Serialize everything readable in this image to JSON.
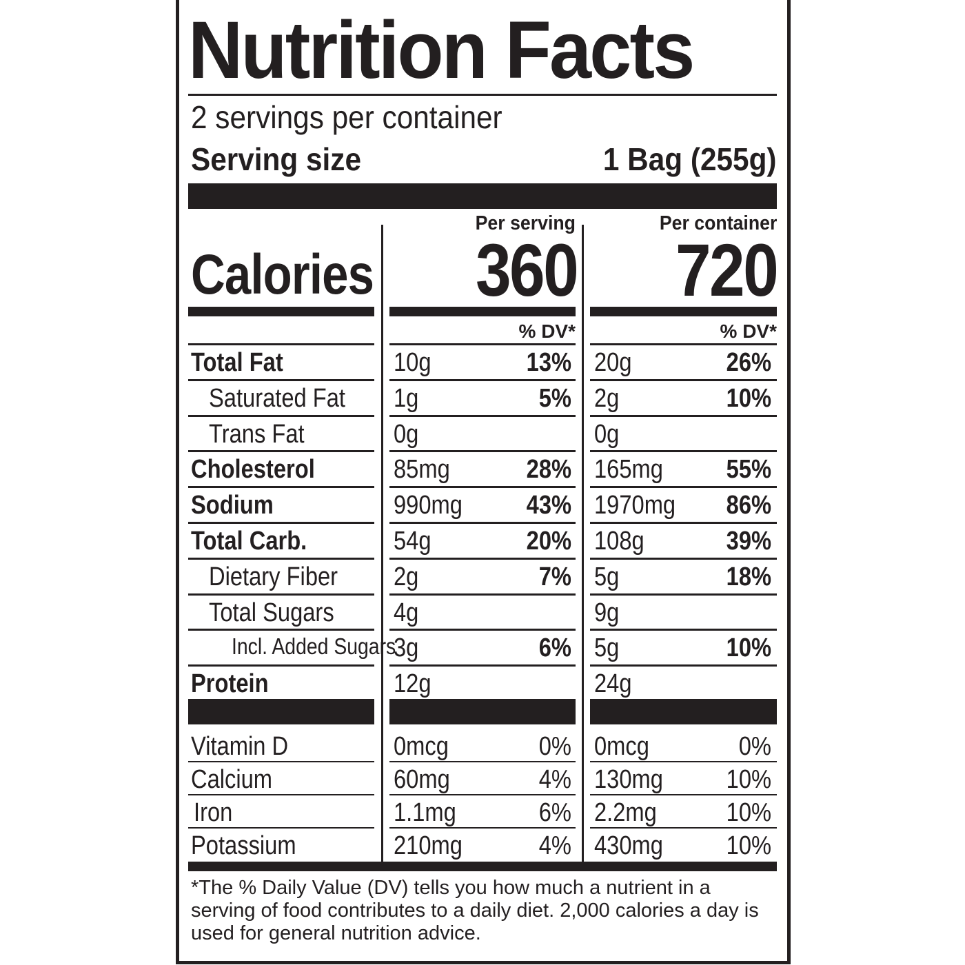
{
  "title": "Nutrition Facts",
  "servings_per_container": "2 servings per container",
  "serving_size": {
    "label": "Serving size",
    "value": "1 Bag (255g)"
  },
  "columns": {
    "per_serving": "Per serving",
    "per_container": "Per container"
  },
  "calories": {
    "label": "Calories",
    "per_serving": "360",
    "per_container": "720"
  },
  "dv_header": "% DV*",
  "nutrients": [
    {
      "name": "Total Fat",
      "bold": true,
      "indent": 0,
      "s_amt": "10g",
      "s_dv": "13%",
      "c_amt": "20g",
      "c_dv": "26%"
    },
    {
      "name": "Saturated Fat",
      "bold": false,
      "indent": 1,
      "s_amt": "1g",
      "s_dv": "5%",
      "c_amt": "2g",
      "c_dv": "10%"
    },
    {
      "name": "Trans Fat",
      "bold": false,
      "indent": 1,
      "s_amt": "0g",
      "s_dv": "",
      "c_amt": "0g",
      "c_dv": ""
    },
    {
      "name": "Cholesterol",
      "bold": true,
      "indent": 0,
      "s_amt": "85mg",
      "s_dv": "28%",
      "c_amt": "165mg",
      "c_dv": "55%"
    },
    {
      "name": "Sodium",
      "bold": true,
      "indent": 0,
      "s_amt": "990mg",
      "s_dv": "43%",
      "c_amt": "1970mg",
      "c_dv": "86%"
    },
    {
      "name": "Total Carb.",
      "bold": true,
      "indent": 0,
      "s_amt": "54g",
      "s_dv": "20%",
      "c_amt": "108g",
      "c_dv": "39%"
    },
    {
      "name": "Dietary Fiber",
      "bold": false,
      "indent": 1,
      "s_amt": "2g",
      "s_dv": "7%",
      "c_amt": "5g",
      "c_dv": "18%"
    },
    {
      "name": "Total Sugars",
      "bold": false,
      "indent": 1,
      "s_amt": "4g",
      "s_dv": "",
      "c_amt": "9g",
      "c_dv": ""
    },
    {
      "name": "Incl. Added Sugars",
      "bold": false,
      "indent": 2,
      "s_amt": "3g",
      "s_dv": "6%",
      "c_amt": "5g",
      "c_dv": "10%"
    },
    {
      "name": "Protein",
      "bold": true,
      "indent": 0,
      "s_amt": "12g",
      "s_dv": "",
      "c_amt": "24g",
      "c_dv": ""
    }
  ],
  "vitamins": [
    {
      "name": "Vitamin D",
      "s_amt": "0mcg",
      "s_dv": "0%",
      "c_amt": "0mcg",
      "c_dv": "0%"
    },
    {
      "name": "Calcium",
      "s_amt": "60mg",
      "s_dv": "4%",
      "c_amt": "130mg",
      "c_dv": "10%"
    },
    {
      "name": "Iron",
      "s_amt": "1.1mg",
      "s_dv": "6%",
      "c_amt": "2.2mg",
      "c_dv": "10%"
    },
    {
      "name": "Potassium",
      "s_amt": "210mg",
      "s_dv": "4%",
      "c_amt": "430mg",
      "c_dv": "10%"
    }
  ],
  "footnote": "*The % Daily Value (DV) tells you how much a nutrient in a serving of food contributes to a daily diet. 2,000 calories a day is used for general nutrition advice."
}
